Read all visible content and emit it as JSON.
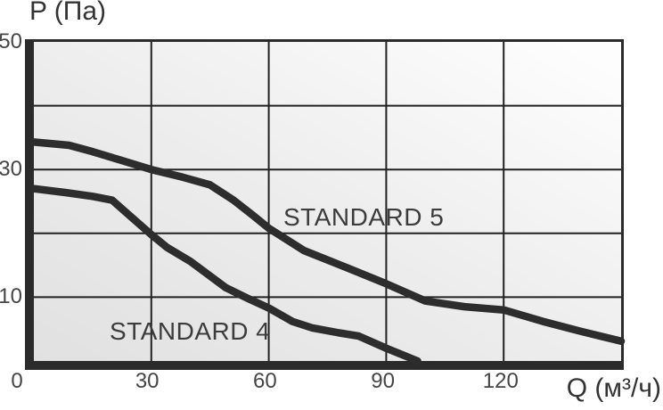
{
  "chart_data": {
    "type": "line",
    "title": "",
    "xlabel": "Q (м³/ч)",
    "ylabel": "P (Па)",
    "xlim": [
      0,
      150
    ],
    "ylim": [
      0,
      50
    ],
    "x_tick_labels": [
      "0",
      "30",
      "60",
      "90",
      "120"
    ],
    "x_tick_values": [
      0,
      30,
      60,
      90,
      120
    ],
    "y_tick_labels": [
      "50",
      "30",
      "10"
    ],
    "y_tick_values": [
      50,
      30,
      10
    ],
    "x_gridlines": [
      30,
      60,
      90,
      120
    ],
    "y_gridlines": [
      10,
      20,
      30,
      40
    ],
    "grid": "on",
    "legend_position": "inline-curve-labels",
    "series": [
      {
        "name": "STANDARD 5",
        "points": [
          [
            0,
            34.3
          ],
          [
            9,
            33.8
          ],
          [
            15,
            32.8
          ],
          [
            22,
            31.5
          ],
          [
            30,
            30
          ],
          [
            38,
            28.8
          ],
          [
            45,
            27.6
          ],
          [
            51,
            25.2
          ],
          [
            56,
            22.8
          ],
          [
            60,
            20.8
          ],
          [
            69,
            17.3
          ],
          [
            80,
            14.6
          ],
          [
            90,
            12.1
          ],
          [
            100,
            9.4
          ],
          [
            110,
            8.5
          ],
          [
            120,
            8.0
          ],
          [
            130,
            6.2
          ],
          [
            140,
            4.6
          ],
          [
            150,
            3.1
          ]
        ]
      },
      {
        "name": "STANDARD 4",
        "points": [
          [
            0,
            27.0
          ],
          [
            8,
            26.4
          ],
          [
            15,
            25.8
          ],
          [
            20,
            25.2
          ],
          [
            25,
            22.5
          ],
          [
            30,
            19.8
          ],
          [
            34,
            17.8
          ],
          [
            40,
            15.6
          ],
          [
            49,
            11.5
          ],
          [
            55,
            9.7
          ],
          [
            60,
            8.3
          ],
          [
            66,
            6.2
          ],
          [
            71,
            5.2
          ],
          [
            78,
            4.4
          ],
          [
            83,
            3.9
          ],
          [
            90,
            2.0
          ],
          [
            98,
            0
          ]
        ]
      }
    ],
    "colors": {
      "curve": "#2d2d2d",
      "grid": "#212121",
      "axis": "#2b2b2b",
      "text": "#3c3c3c",
      "plot_bg_from": "#e1e1e1",
      "plot_bg_to": "#fdfdfd"
    }
  }
}
